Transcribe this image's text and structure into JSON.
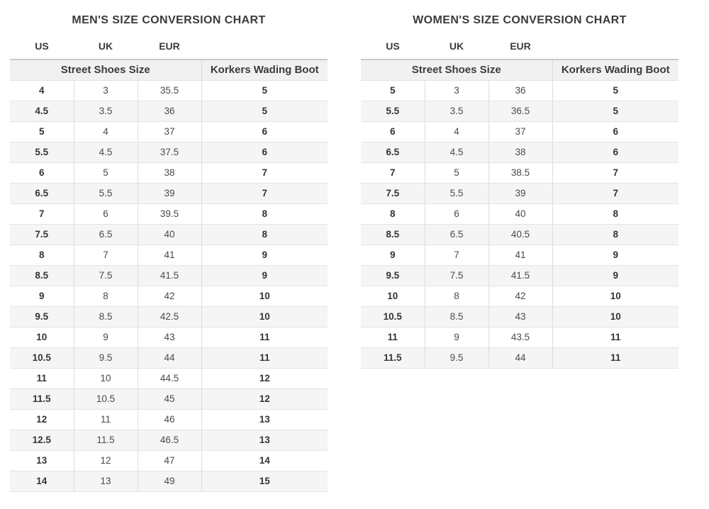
{
  "colors": {
    "text_dark": "#3b3b3b",
    "text_regular": "#4a4a4a",
    "stripe_bg": "#f5f5f5",
    "group_header_bg": "#f1f1f1",
    "table_top_border": "#c9c9c9",
    "row_border": "#e3e3e3",
    "column_divider": "#dcdcdc",
    "page_bg": "#ffffff"
  },
  "chart_data": [
    {
      "type": "table",
      "id": "mens",
      "title": "MEN'S SIZE CONVERSION CHART",
      "region_labels": [
        "US",
        "UK",
        "EUR"
      ],
      "group_headers": [
        "Street Shoes Size",
        "Korkers Wading Boot"
      ],
      "columns": [
        "US Street Shoe",
        "UK Street Shoe",
        "EUR Street Shoe",
        "Korkers Wading Boot"
      ],
      "col_keys": [
        "us",
        "uk",
        "eur",
        "boot"
      ],
      "rows": [
        [
          "4",
          "3",
          "35.5",
          "5"
        ],
        [
          "4.5",
          "3.5",
          "36",
          "5"
        ],
        [
          "5",
          "4",
          "37",
          "6"
        ],
        [
          "5.5",
          "4.5",
          "37.5",
          "6"
        ],
        [
          "6",
          "5",
          "38",
          "7"
        ],
        [
          "6.5",
          "5.5",
          "39",
          "7"
        ],
        [
          "7",
          "6",
          "39.5",
          "8"
        ],
        [
          "7.5",
          "6.5",
          "40",
          "8"
        ],
        [
          "8",
          "7",
          "41",
          "9"
        ],
        [
          "8.5",
          "7.5",
          "41.5",
          "9"
        ],
        [
          "9",
          "8",
          "42",
          "10"
        ],
        [
          "9.5",
          "8.5",
          "42.5",
          "10"
        ],
        [
          "10",
          "9",
          "43",
          "11"
        ],
        [
          "10.5",
          "9.5",
          "44",
          "11"
        ],
        [
          "11",
          "10",
          "44.5",
          "12"
        ],
        [
          "11.5",
          "10.5",
          "45",
          "12"
        ],
        [
          "12",
          "11",
          "46",
          "13"
        ],
        [
          "12.5",
          "11.5",
          "46.5",
          "13"
        ],
        [
          "13",
          "12",
          "47",
          "14"
        ],
        [
          "14",
          "13",
          "49",
          "15"
        ]
      ]
    },
    {
      "type": "table",
      "id": "womens",
      "title": "WOMEN'S SIZE CONVERSION CHART",
      "region_labels": [
        "US",
        "UK",
        "EUR"
      ],
      "group_headers": [
        "Street Shoes Size",
        "Korkers Wading Boot"
      ],
      "columns": [
        "US Street Shoe",
        "UK Street Shoe",
        "EUR Street Shoe",
        "Korkers Wading Boot"
      ],
      "col_keys": [
        "us",
        "uk",
        "eur",
        "boot"
      ],
      "rows": [
        [
          "5",
          "3",
          "36",
          "5"
        ],
        [
          "5.5",
          "3.5",
          "36.5",
          "5"
        ],
        [
          "6",
          "4",
          "37",
          "6"
        ],
        [
          "6.5",
          "4.5",
          "38",
          "6"
        ],
        [
          "7",
          "5",
          "38.5",
          "7"
        ],
        [
          "7.5",
          "5.5",
          "39",
          "7"
        ],
        [
          "8",
          "6",
          "40",
          "8"
        ],
        [
          "8.5",
          "6.5",
          "40.5",
          "8"
        ],
        [
          "9",
          "7",
          "41",
          "9"
        ],
        [
          "9.5",
          "7.5",
          "41.5",
          "9"
        ],
        [
          "10",
          "8",
          "42",
          "10"
        ],
        [
          "10.5",
          "8.5",
          "43",
          "10"
        ],
        [
          "11",
          "9",
          "43.5",
          "11"
        ],
        [
          "11.5",
          "9.5",
          "44",
          "11"
        ]
      ]
    }
  ]
}
